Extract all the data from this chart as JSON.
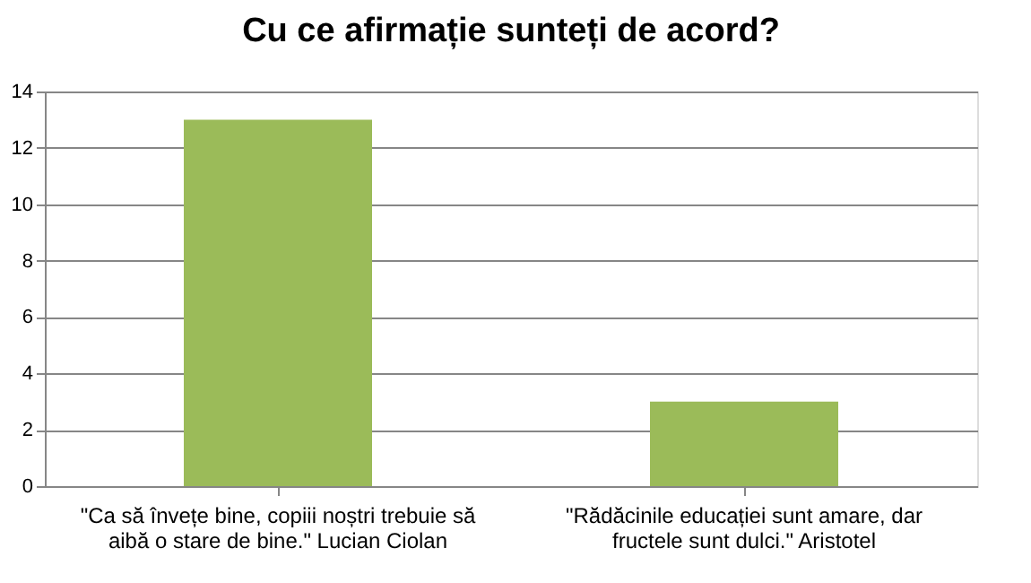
{
  "chart_data": {
    "type": "bar",
    "title": "Cu ce afirmație sunteți de acord?",
    "categories": [
      "\"Ca să învețe bine, copiii noștri trebuie să aibă o stare de bine.\" Lucian Ciolan",
      "\"Rădăcinile educației sunt amare, dar fructele sunt dulci.\" Aristotel"
    ],
    "values": [
      13,
      3
    ],
    "color": "#9bbb59",
    "ylim": [
      0,
      14
    ],
    "yticks": [
      0,
      2,
      4,
      6,
      8,
      10,
      12,
      14
    ],
    "grid": "y"
  }
}
